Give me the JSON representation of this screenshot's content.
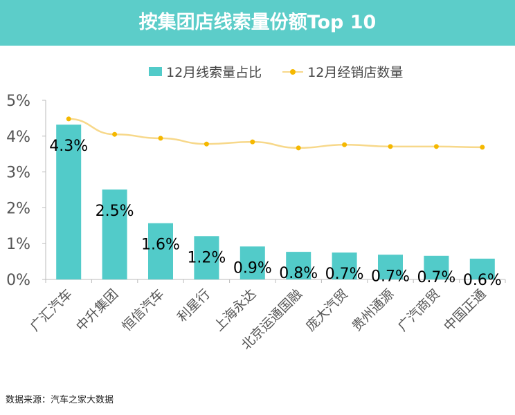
{
  "title": "按集团店线索量份额Top 10",
  "footer": "数据来源：汽车之家大数据",
  "chart_data": {
    "type": "bar+line",
    "title": "按集团店线索量份额Top 10",
    "categories": [
      "广汇汽车",
      "中升集团",
      "恒信汽车",
      "利星行",
      "上海永达",
      "北京运通国融",
      "庞大汽贸",
      "贵州通源",
      "广汽商贸",
      "中国正通"
    ],
    "series": [
      {
        "name": "12月线索量占比",
        "type": "bar",
        "color": "#52cbc9",
        "values": [
          4.32,
          2.51,
          1.57,
          1.21,
          0.92,
          0.77,
          0.75,
          0.69,
          0.66,
          0.58
        ],
        "labels": [
          "4.3%",
          "2.5%",
          "1.6%",
          "1.2%",
          "0.9%",
          "0.8%",
          "0.7%",
          "0.7%",
          "0.7%",
          "0.6%"
        ]
      },
      {
        "name": "12月经销店数量",
        "type": "line",
        "color": "#f5b800",
        "values": [
          4.48,
          4.05,
          3.94,
          3.78,
          3.84,
          3.67,
          3.76,
          3.71,
          3.71,
          3.69
        ]
      }
    ],
    "yticks": [
      "0%",
      "1%",
      "2%",
      "3%",
      "4%",
      "5%"
    ],
    "ylim": [
      0,
      5
    ],
    "grid": false,
    "legend": "top"
  }
}
